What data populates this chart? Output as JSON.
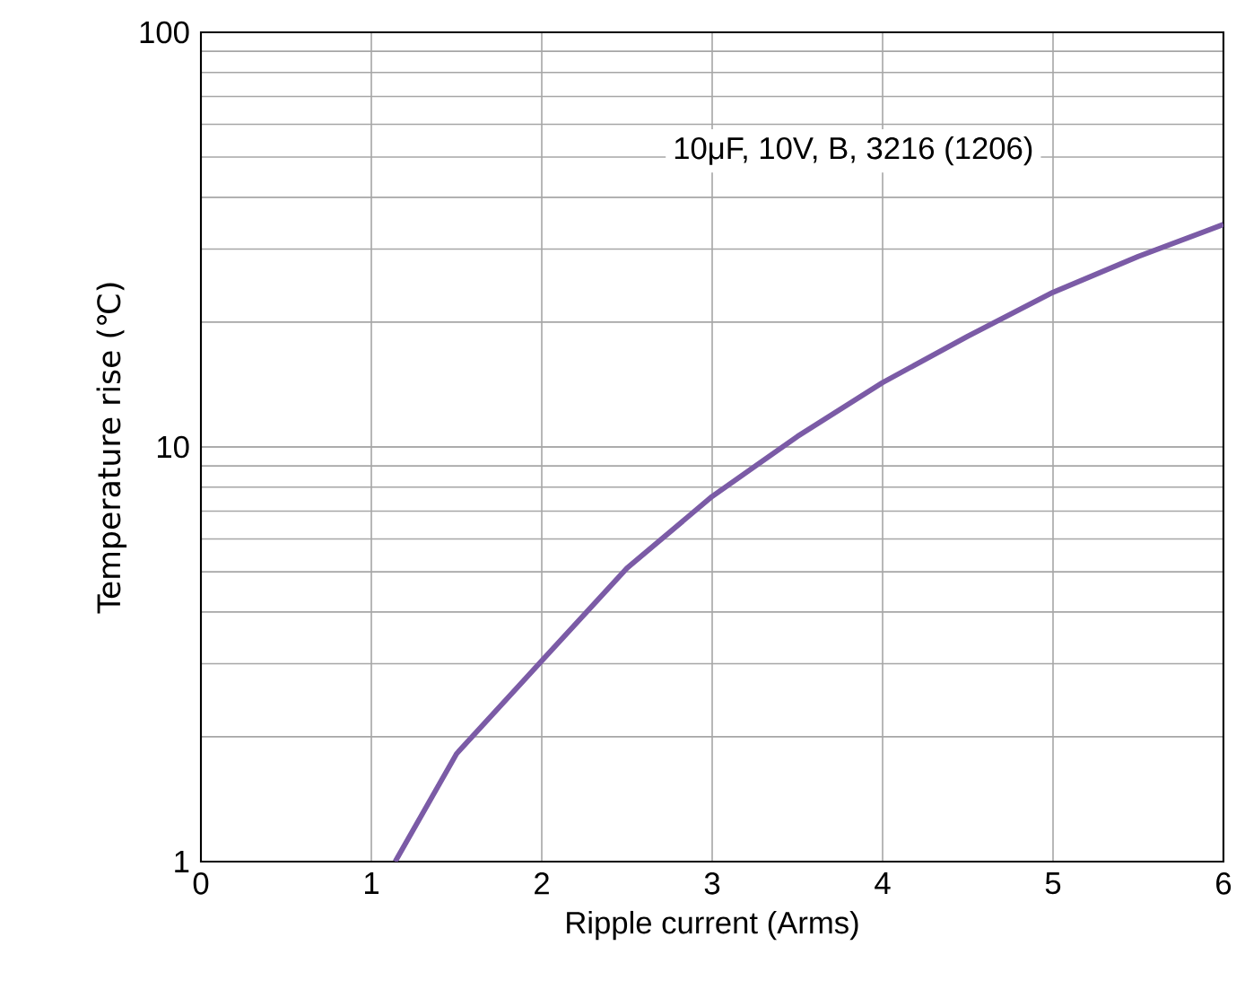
{
  "chart_data": {
    "type": "line",
    "xlabel": "Ripple current (Arms)",
    "ylabel": "Temperature rise (℃)",
    "annotations": [
      "10μF, 10V, B, 3216 (1206)"
    ],
    "series": [
      {
        "color": "#7b5ba6",
        "x": [
          1.14,
          1.5,
          2,
          2.5,
          3,
          3.5,
          4,
          4.5,
          5,
          5.5,
          6
        ],
        "values": [
          1,
          1.82,
          3.05,
          5.1,
          7.6,
          10.6,
          14.3,
          18.5,
          23.6,
          28.8,
          34.4
        ]
      }
    ],
    "xlim": [
      0,
      6
    ],
    "xticks": [
      0,
      1,
      2,
      3,
      4,
      5,
      6
    ],
    "ylim": [
      1,
      100
    ],
    "yticks": [
      1,
      10,
      100
    ],
    "log": "y",
    "grid": true,
    "marker": "none",
    "line_style": "solid"
  }
}
